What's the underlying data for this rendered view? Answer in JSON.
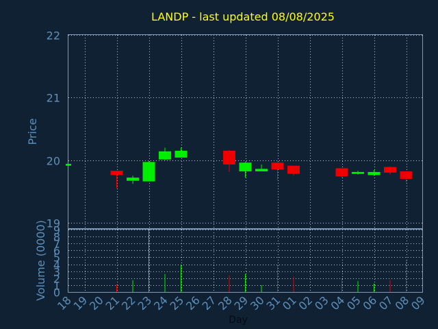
{
  "chart_data": {
    "type": "candlestick",
    "title": "LANDP - last updated 08/08/2025",
    "xlabel": "Day",
    "price_panel": {
      "ylabel": "Price",
      "ylim": [
        18.9,
        22.0
      ],
      "yticks": [
        19,
        20,
        21,
        22
      ]
    },
    "volume_panel": {
      "ylabel": "Volume (0000)",
      "ylim": [
        0,
        9
      ],
      "yticks": [
        0,
        1,
        2,
        3,
        4,
        5,
        6,
        7,
        8,
        9
      ]
    },
    "x_tick_labels": [
      "18",
      "19",
      "20",
      "21",
      "22",
      "23",
      "24",
      "25",
      "26",
      "27",
      "28",
      "29",
      "30",
      "31",
      "01",
      "02",
      "03",
      "04",
      "05",
      "06",
      "07",
      "08",
      "09"
    ],
    "grid": true,
    "colors": {
      "up": "#00ee00",
      "down": "#ee0000",
      "title": "#ffff00",
      "axis": "#5f8fb8",
      "background": "#0f2133"
    },
    "candles": [
      {
        "x": 18,
        "open": 19.91,
        "close": 19.94,
        "high": 19.94,
        "low": 19.91,
        "volume": 0
      },
      {
        "x": 21,
        "open": 19.83,
        "close": 19.76,
        "high": 19.83,
        "low": 19.55,
        "volume": 1.1
      },
      {
        "x": 22,
        "open": 19.67,
        "close": 19.72,
        "high": 19.75,
        "low": 19.62,
        "volume": 1.7
      },
      {
        "x": 23,
        "open": 19.66,
        "close": 19.97,
        "high": 19.98,
        "low": 19.66,
        "volume": 9.0
      },
      {
        "x": 24,
        "open": 20.01,
        "close": 20.14,
        "high": 20.2,
        "low": 20.0,
        "volume": 2.6
      },
      {
        "x": 25,
        "open": 20.04,
        "close": 20.15,
        "high": 20.2,
        "low": 20.04,
        "volume": 3.9
      },
      {
        "x": 28,
        "open": 20.15,
        "close": 19.93,
        "high": 20.16,
        "low": 19.81,
        "volume": 2.4
      },
      {
        "x": 29,
        "open": 19.82,
        "close": 19.96,
        "high": 19.97,
        "low": 19.72,
        "volume": 2.6
      },
      {
        "x": 30,
        "open": 19.82,
        "close": 19.86,
        "high": 19.93,
        "low": 19.82,
        "volume": 1.0
      },
      {
        "x": 31,
        "open": 19.96,
        "close": 19.85,
        "high": 19.97,
        "low": 19.68,
        "volume": 3.9
      },
      {
        "x": 32,
        "open": 19.91,
        "close": 19.78,
        "high": 19.91,
        "low": 19.75,
        "volume": 2.2
      },
      {
        "x": 35,
        "open": 19.87,
        "close": 19.74,
        "high": 19.87,
        "low": 19.72,
        "volume": 2.0
      },
      {
        "x": 36,
        "open": 19.78,
        "close": 19.81,
        "high": 19.83,
        "low": 19.77,
        "volume": 1.6
      },
      {
        "x": 37,
        "open": 19.76,
        "close": 19.81,
        "high": 19.84,
        "low": 19.75,
        "volume": 1.2
      },
      {
        "x": 38,
        "open": 19.89,
        "close": 19.8,
        "high": 19.9,
        "low": 19.77,
        "volume": 1.7
      },
      {
        "x": 39,
        "open": 19.82,
        "close": 19.7,
        "high": 19.82,
        "low": 19.64,
        "volume": 4.6
      }
    ]
  }
}
